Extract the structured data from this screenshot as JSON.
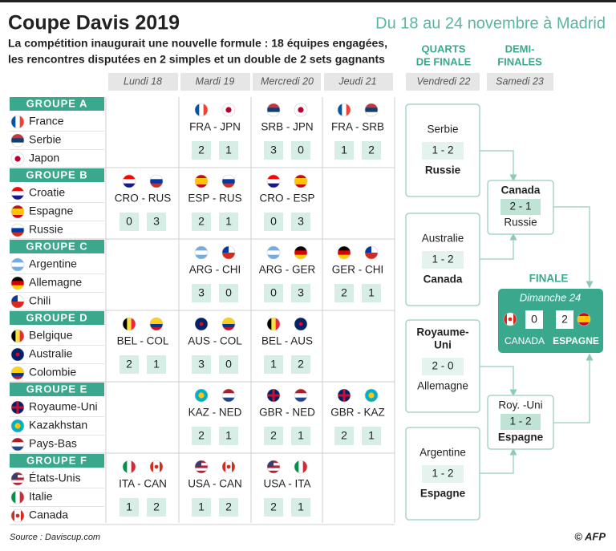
{
  "header": {
    "title": "Coupe Davis 2019",
    "dates": "Du 18 au 24 novembre à Madrid",
    "subtitle": [
      "La compétition inaugurait une nouvelle formule : 18 équipes engagées,",
      "les rencontres disputées en 2 simples et un double de 2 sets gagnants"
    ]
  },
  "days": [
    "Lundi 18",
    "Mardi 19",
    "Mercredi 20",
    "Jeudi 21"
  ],
  "knockout_headers": [
    {
      "lines": [
        "QUARTS",
        "DE FINALE"
      ],
      "day": "Vendredi 22"
    },
    {
      "lines": [
        "DEMI-",
        "FINALES"
      ],
      "day": "Samedi 23"
    }
  ],
  "groups": [
    {
      "name": "GROUPE A",
      "teams": [
        "France",
        "Serbie",
        "Japon"
      ],
      "matches": [
        null,
        {
          "teams": "FRA - JPN",
          "score": [
            2,
            1
          ]
        },
        {
          "teams": "SRB - JPN",
          "score": [
            3,
            0
          ]
        },
        {
          "teams": "FRA - SRB",
          "score": [
            1,
            2
          ]
        }
      ]
    },
    {
      "name": "GROUPE B",
      "teams": [
        "Croatie",
        "Espagne",
        "Russie"
      ],
      "matches": [
        {
          "teams": "CRO - RUS",
          "score": [
            0,
            3
          ]
        },
        {
          "teams": "ESP - RUS",
          "score": [
            2,
            1
          ]
        },
        {
          "teams": "CRO - ESP",
          "score": [
            0,
            3
          ]
        },
        null
      ]
    },
    {
      "name": "GROUPE C",
      "teams": [
        "Argentine",
        "Allemagne",
        "Chili"
      ],
      "matches": [
        null,
        {
          "teams": "ARG - CHI",
          "score": [
            3,
            0
          ]
        },
        {
          "teams": "ARG - GER",
          "score": [
            0,
            3
          ]
        },
        {
          "teams": "GER - CHI",
          "score": [
            2,
            1
          ]
        }
      ]
    },
    {
      "name": "GROUPE D",
      "teams": [
        "Belgique",
        "Australie",
        "Colombie"
      ],
      "matches": [
        {
          "teams": "BEL - COL",
          "score": [
            2,
            1
          ]
        },
        {
          "teams": "AUS - COL",
          "score": [
            3,
            0
          ]
        },
        {
          "teams": "BEL - AUS",
          "score": [
            1,
            2
          ]
        },
        null
      ]
    },
    {
      "name": "GROUPE E",
      "teams": [
        "Royaume-Uni",
        "Kazakhstan",
        "Pays-Bas"
      ],
      "matches": [
        null,
        {
          "teams": "KAZ - NED",
          "score": [
            2,
            1
          ]
        },
        {
          "teams": "GBR - NED",
          "score": [
            2,
            1
          ]
        },
        {
          "teams": "GBR - KAZ",
          "score": [
            2,
            1
          ]
        }
      ]
    },
    {
      "name": "GROUPE F",
      "teams": [
        "États-Unis",
        "Italie",
        "Canada"
      ],
      "matches": [
        {
          "teams": "ITA - CAN",
          "score": [
            1,
            2
          ]
        },
        {
          "teams": "USA - CAN",
          "score": [
            1,
            2
          ]
        },
        {
          "teams": "USA - ITA",
          "score": [
            2,
            1
          ]
        },
        null
      ]
    }
  ],
  "quarterfinals": [
    {
      "top": [
        "Serbie"
      ],
      "score": "1 - 2",
      "bottom": "Russie",
      "winner": "bottom"
    },
    {
      "top": [
        "Australie"
      ],
      "score": "1 - 2",
      "bottom": "Canada",
      "winner": "bottom"
    },
    {
      "top": [
        "Royaume-",
        "Uni"
      ],
      "score": "2 - 0",
      "bottom": "Allemagne",
      "winner": "top"
    },
    {
      "top": [
        "Argentine"
      ],
      "score": "1 - 2",
      "bottom": "Espagne",
      "winner": "bottom"
    }
  ],
  "semifinals": [
    {
      "top": "Canada",
      "score": "2 - 1",
      "bottom": "Russie",
      "winner": "top"
    },
    {
      "top": "Roy. -Uni",
      "score": "1 - 2",
      "bottom": "Espagne",
      "winner": "bottom"
    }
  ],
  "final": {
    "title": "FINALE",
    "day": "Dimanche 24",
    "teams": [
      "CANADA",
      "ESPAGNE"
    ],
    "score": [
      0,
      2
    ]
  },
  "footer": {
    "source": "Source : Daviscup.com",
    "credit": "© AFP"
  }
}
